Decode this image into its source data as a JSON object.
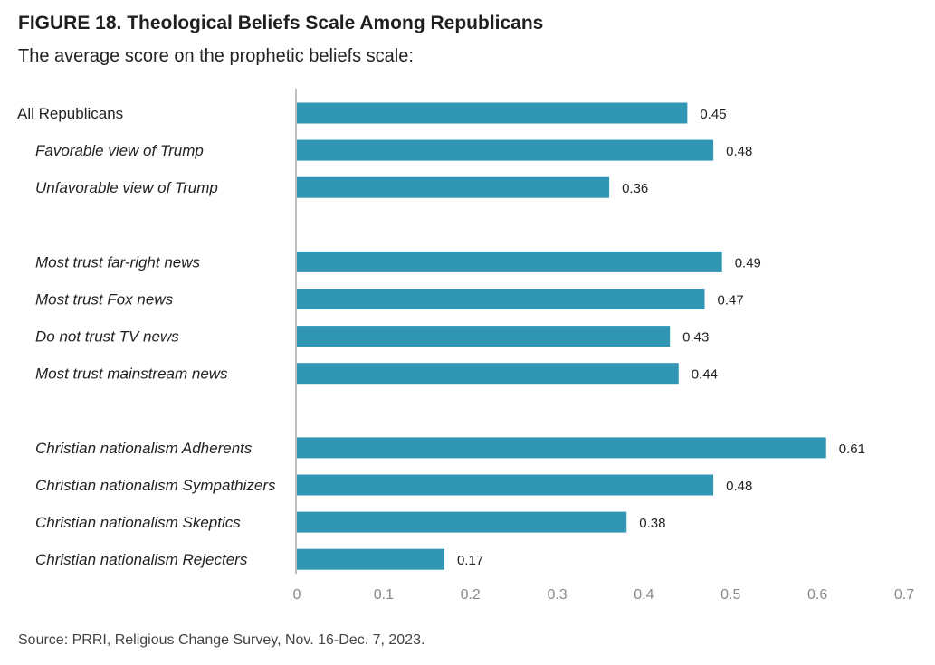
{
  "title": "FIGURE 18. Theological Beliefs Scale Among Republicans",
  "subtitle": "The average score on the prophetic beliefs scale:",
  "source": "PRRI, Religious Change Survey, Nov. 16-Dec. 7, 2023.",
  "source_prefix": "Source: ",
  "colors": {
    "bar": "#3196b3",
    "axis": "#bfbfbf"
  },
  "chart_data": {
    "type": "bar",
    "orientation": "horizontal",
    "title": "FIGURE 18. Theological Beliefs Scale Among Republicans",
    "subtitle": "The average score on the prophetic beliefs scale:",
    "xlim": [
      0,
      0.7
    ],
    "xticks": [
      "0",
      "0.1",
      "0.2",
      "0.3",
      "0.4",
      "0.5",
      "0.6",
      "0.7"
    ],
    "grid": false,
    "groups": [
      [
        {
          "category": "All Republicans",
          "value": 0.45,
          "label": "0.45",
          "italic": false
        },
        {
          "category": "Favorable view of Trump",
          "value": 0.48,
          "label": "0.48",
          "italic": true
        },
        {
          "category": "Unfavorable view of Trump",
          "value": 0.36,
          "label": "0.36",
          "italic": true
        }
      ],
      [
        {
          "category": "Most trust far-right news",
          "value": 0.49,
          "label": "0.49",
          "italic": true
        },
        {
          "category": "Most trust Fox news",
          "value": 0.47,
          "label": "0.47",
          "italic": true
        },
        {
          "category": "Do not trust TV news",
          "value": 0.43,
          "label": "0.43",
          "italic": true
        },
        {
          "category": "Most trust mainstream news",
          "value": 0.44,
          "label": "0.44",
          "italic": true
        }
      ],
      [
        {
          "category": "Christian nationalism Adherents",
          "value": 0.61,
          "label": "0.61",
          "italic": true
        },
        {
          "category": "Christian nationalism Sympathizers",
          "value": 0.48,
          "label": "0.48",
          "italic": true
        },
        {
          "category": "Christian nationalism Skeptics",
          "value": 0.38,
          "label": "0.38",
          "italic": true
        },
        {
          "category": "Christian nationalism Rejecters",
          "value": 0.17,
          "label": "0.17",
          "italic": true
        }
      ]
    ]
  }
}
